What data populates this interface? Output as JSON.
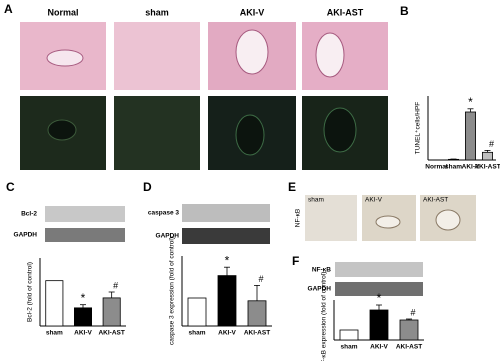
{
  "panel_a": {
    "label": "A",
    "columns": [
      "Normal",
      "sham",
      "AKI-V",
      "AKI-AST"
    ]
  },
  "panel_e": {
    "label": "E",
    "row_label": "NF-κB",
    "columns": [
      "sham",
      "AKI-V",
      "AKI-AST"
    ]
  },
  "chart_data": [
    {
      "type": "bar",
      "panel": "B",
      "ylabel": "TUNEL⁺cells/HPF",
      "categories": [
        "Normal",
        "sham",
        "AKI-V",
        "AKI-AST"
      ],
      "values": [
        0,
        1,
        75,
        12
      ],
      "errors": [
        0,
        0.5,
        5,
        3
      ],
      "colors": [
        "#ffffff",
        "#ffffff",
        "#8c8c8c",
        "#bfbfbf"
      ],
      "annotations": [
        null,
        null,
        "*",
        "#"
      ],
      "ylim": [
        0,
        100
      ]
    },
    {
      "type": "bar",
      "panel": "C",
      "ylabel": "Bcl-2 (fold of control)",
      "blot_labels": [
        "Bcl-2",
        "GAPDH"
      ],
      "categories": [
        "sham",
        "AKI-V",
        "AKI-AST"
      ],
      "values": [
        1.0,
        0.4,
        0.62
      ],
      "errors": [
        0,
        0.07,
        0.13
      ],
      "colors": [
        "#ffffff",
        "#000000",
        "#8c8c8c"
      ],
      "annotations": [
        null,
        "*",
        "#"
      ],
      "ylim": [
        0,
        1.5
      ]
    },
    {
      "type": "bar",
      "panel": "D",
      "ylabel": "caspase 3 expression (fold of control)",
      "blot_labels": [
        "caspase 3",
        "GAPDH"
      ],
      "categories": [
        "sham",
        "AKI-V",
        "AKI-AST"
      ],
      "values": [
        1.0,
        1.8,
        0.9
      ],
      "errors": [
        0,
        0.3,
        0.55
      ],
      "colors": [
        "#ffffff",
        "#000000",
        "#8c8c8c"
      ],
      "annotations": [
        null,
        "*",
        "#"
      ],
      "ylim": [
        0,
        2.5
      ]
    },
    {
      "type": "bar",
      "panel": "F",
      "ylabel": "NF-κB expression (fold of control)",
      "blot_labels": [
        "NF-κB",
        "GAPDH"
      ],
      "categories": [
        "sham",
        "AKI-V",
        "AKI-AST"
      ],
      "values": [
        1.0,
        3.0,
        2.0
      ],
      "errors": [
        0,
        0.5,
        0.1
      ],
      "colors": [
        "#ffffff",
        "#000000",
        "#8c8c8c"
      ],
      "annotations": [
        null,
        "*",
        "#"
      ],
      "ylim": [
        0,
        4
      ]
    }
  ]
}
